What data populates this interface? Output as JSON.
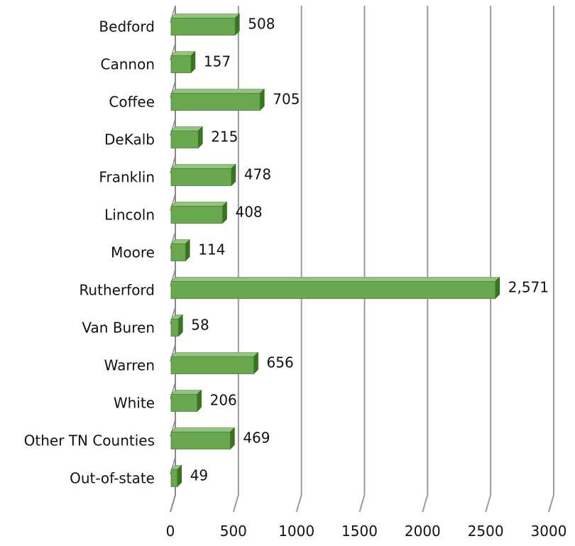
{
  "chart_data": {
    "type": "bar",
    "orientation": "horizontal",
    "style": "3d",
    "title": "",
    "xlabel": "",
    "ylabel": "",
    "categories": [
      "Bedford",
      "Cannon",
      "Coffee",
      "DeKalb",
      "Franklin",
      "Lincoln",
      "Moore",
      "Rutherford",
      "Van Buren",
      "Warren",
      "White",
      "Other TN Counties",
      "Out-of-state"
    ],
    "values": [
      508,
      157,
      705,
      215,
      478,
      408,
      114,
      2571,
      58,
      656,
      206,
      469,
      49
    ],
    "value_labels": [
      "508",
      "157",
      "705",
      "215",
      "478",
      "408",
      "114",
      "2,571",
      "58",
      "656",
      "206",
      "469",
      "49"
    ],
    "xlim": [
      0,
      3000
    ],
    "x_ticks": [
      0,
      500,
      1000,
      1500,
      2000,
      2500,
      3000
    ],
    "x_tick_labels": [
      "0",
      "500",
      "1000",
      "1500",
      "2000",
      "2500",
      "3000"
    ],
    "grid": true,
    "legend": "none",
    "colors": {
      "bar_front": "#6aa84f",
      "bar_top": "#93c47d",
      "bar_side": "#38761d",
      "gridline": "#9a9a9a",
      "text": "#111111"
    }
  }
}
